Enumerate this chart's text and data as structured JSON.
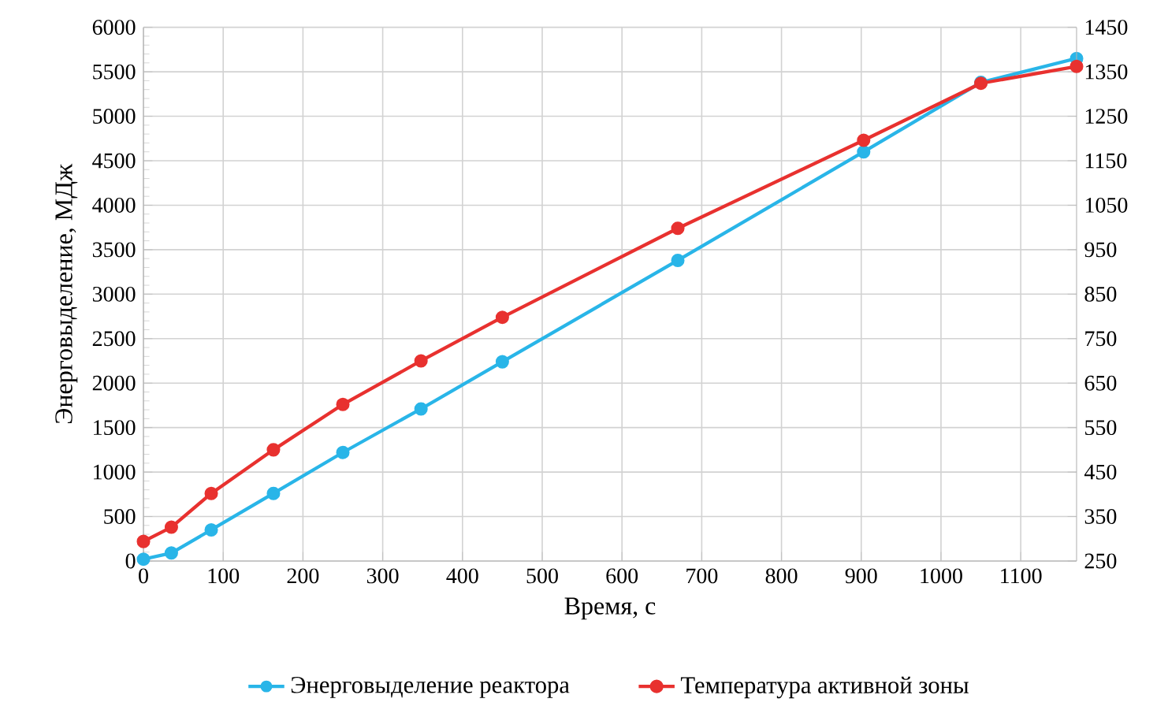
{
  "chart_data": {
    "type": "line",
    "xlabel": "Время, с",
    "ylabel": "Энерговыделение, МДж",
    "series": [
      {
        "name": "Энерговыделение реактора",
        "color": "#29b5e8",
        "x": [
          0,
          35,
          85,
          163,
          250,
          348,
          450,
          670,
          903,
          1050,
          1170
        ],
        "values": [
          20,
          90,
          350,
          760,
          1220,
          1710,
          2240,
          3380,
          4600,
          5380,
          5650
        ]
      },
      {
        "name": "Температура активной зоны",
        "color": "#e8312f",
        "axis": "y2",
        "x": [
          0,
          35,
          85,
          163,
          250,
          348,
          450,
          670,
          903,
          1050,
          1170
        ],
        "values": [
          294,
          326,
          402,
          500,
          602,
          700,
          798,
          998,
          1196,
          1324,
          1362
        ]
      }
    ],
    "xlim": [
      0,
      1170
    ],
    "xticks": [
      0,
      100,
      200,
      300,
      400,
      500,
      600,
      700,
      800,
      900,
      1000,
      1100
    ],
    "ylim": [
      0,
      6000
    ],
    "yticks": [
      0,
      500,
      1000,
      1500,
      2000,
      2500,
      3000,
      3500,
      4000,
      4500,
      5000,
      5500,
      6000
    ],
    "y2lim": [
      250,
      1450
    ],
    "y2ticks": [
      250,
      350,
      450,
      550,
      650,
      750,
      850,
      950,
      1050,
      1150,
      1250,
      1350,
      1450
    ],
    "grid": true,
    "legend": "bottom",
    "marker": "circle",
    "line_style": "solid"
  }
}
